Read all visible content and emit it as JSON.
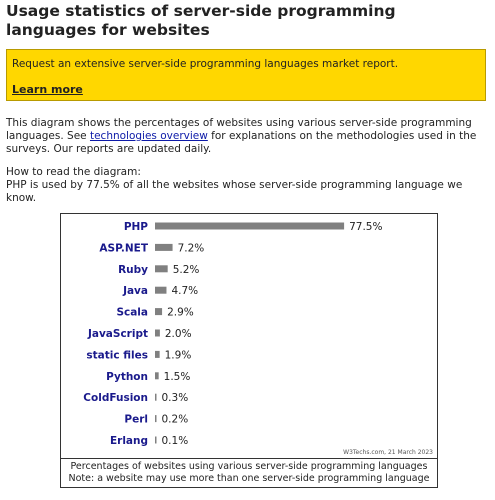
{
  "page": {
    "title": "Usage statistics of server-side programming languages for websites"
  },
  "banner": {
    "message": "Request an extensive server-side programming languages market report.",
    "link": "Learn more",
    "background": "#ffd700"
  },
  "intro": {
    "text_before_link": "This diagram shows the percentages of websites using various server-side programming languages. See ",
    "link": "technologies overview",
    "text_after_link": " for explanations on the methodologies used in the surveys. Our reports are updated daily."
  },
  "how_to_read": {
    "heading": "How to read the diagram:",
    "text": "PHP is used by 77.5% of all the websites whose server-side programming language we know."
  },
  "chart_data": {
    "type": "bar",
    "orientation": "horizontal",
    "categories": [
      "PHP",
      "ASP.NET",
      "Ruby",
      "Java",
      "Scala",
      "JavaScript",
      "static files",
      "Python",
      "ColdFusion",
      "Perl",
      "Erlang"
    ],
    "values": [
      77.5,
      7.2,
      5.2,
      4.7,
      2.9,
      2.0,
      1.9,
      1.5,
      0.3,
      0.2,
      0.1
    ],
    "value_labels": [
      "77.5%",
      "7.2%",
      "5.2%",
      "4.7%",
      "2.9%",
      "2.0%",
      "1.9%",
      "1.5%",
      "0.3%",
      "0.2%",
      "0.1%"
    ],
    "xlim": [
      0,
      100
    ],
    "grid": false,
    "bar_color": "#808080",
    "label_color": "#1a1a8c",
    "source": "W3Techs.com, 21 March 2023",
    "caption_line1": "Percentages of websites using various server-side programming languages",
    "caption_line2": "Note: a website may use more than one server-side programming language"
  }
}
